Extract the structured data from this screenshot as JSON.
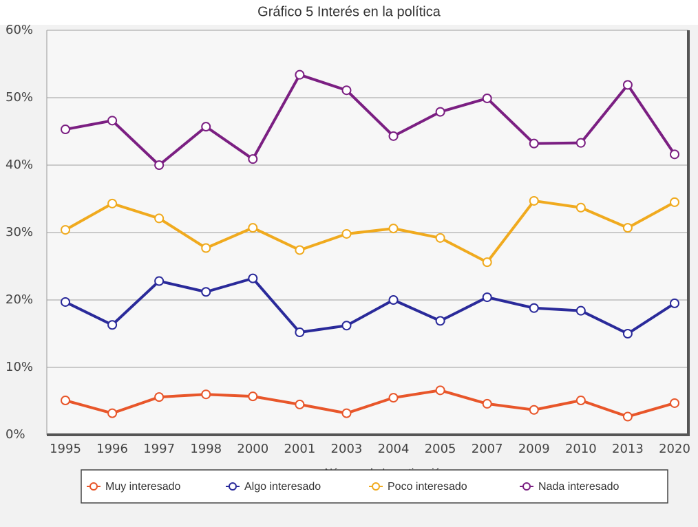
{
  "chart_data": {
    "type": "line",
    "title": "Gráfico 5 Interés en la política",
    "x_label": "Número de Investigación",
    "categories": [
      "1995",
      "1996",
      "1997",
      "1998",
      "2000",
      "2001",
      "2003",
      "2004",
      "2005",
      "2007",
      "2009",
      "2010",
      "2013",
      "2020"
    ],
    "series": [
      {
        "name": "Muy interesado",
        "color": "#e8562a",
        "values": [
          5.1,
          3.2,
          5.6,
          6.0,
          5.7,
          4.5,
          3.2,
          5.5,
          6.6,
          4.6,
          3.7,
          5.1,
          2.7,
          4.7
        ]
      },
      {
        "name": "Algo interesado",
        "color": "#2a2a9a",
        "values": [
          19.7,
          16.3,
          22.8,
          21.2,
          23.2,
          15.2,
          16.2,
          20.0,
          16.9,
          20.4,
          18.8,
          18.4,
          15.0,
          19.5
        ]
      },
      {
        "name": "Poco interesado",
        "color": "#f0aa1e",
        "values": [
          30.4,
          34.3,
          32.1,
          27.7,
          30.7,
          27.4,
          29.8,
          30.6,
          29.2,
          25.6,
          34.7,
          33.7,
          30.7,
          34.5
        ]
      },
      {
        "name": "Nada interesado",
        "color": "#7b1f82",
        "values": [
          45.3,
          46.6,
          40.0,
          45.7,
          40.9,
          53.4,
          51.1,
          44.3,
          47.9,
          49.9,
          43.2,
          43.3,
          51.9,
          41.6
        ]
      }
    ],
    "ylim": [
      0,
      60
    ],
    "yticks": [
      {
        "value": 0,
        "label": "0%"
      },
      {
        "value": 10,
        "label": "10%"
      },
      {
        "value": 20,
        "label": "20%"
      },
      {
        "value": 30,
        "label": "30%"
      },
      {
        "value": 40,
        "label": "40%"
      },
      {
        "value": 50,
        "label": "50%"
      },
      {
        "value": 60,
        "label": "60%"
      }
    ],
    "grid": true,
    "legend": "bottom"
  }
}
